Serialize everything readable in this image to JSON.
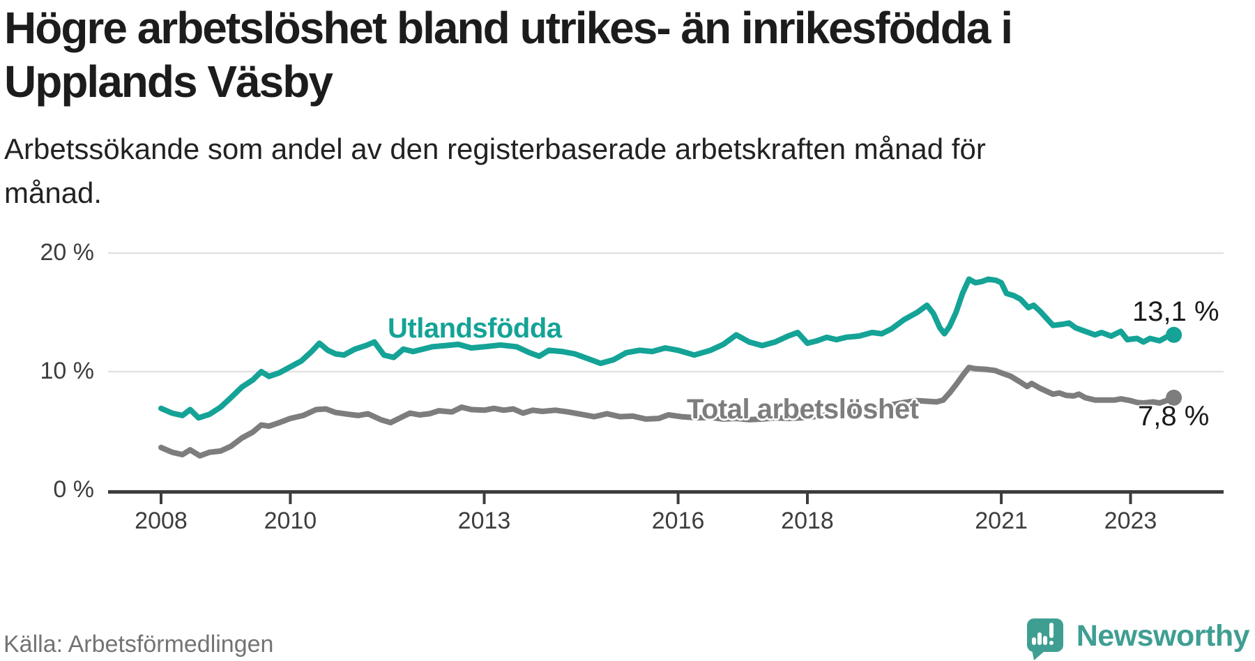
{
  "title": {
    "lines": [
      "Högre arbetslöshet bland utrikes- än inrikesfödda i",
      "Upplands Väsby"
    ]
  },
  "subtitle": {
    "lines": [
      "Arbetssökande som andel av den registerbaserade arbetskraften månad för",
      "månad."
    ]
  },
  "source_note": "Källa: Arbetsförmedlingen",
  "logo": {
    "text": "Newsworthy",
    "icon": "newsworthy-speech-bubble-bar-chart-icon"
  },
  "colors": {
    "teal_line": "#14a396",
    "gray_line": "#7d7d7d",
    "axis": "#3d3d3d",
    "grid": "#e2e2e2",
    "annotation": "#1a1a1a",
    "logo_teal": "#3f9e92",
    "background": "#ffffff"
  },
  "chart_data": {
    "type": "line",
    "title": "Högre arbetslöshet bland utrikes- än inrikesfödda i Upplands Väsby",
    "xlabel": "",
    "ylabel": "Arbetssökande som andel av den registerbaserade arbetskraften",
    "unit": "%",
    "grid": "horizontal",
    "legend": "inline-labels",
    "xlim": [
      2007.2,
      2024.4
    ],
    "ylim": [
      0,
      20
    ],
    "y_ticks": [
      {
        "label": "20 %",
        "value": 20
      },
      {
        "label": "10 %",
        "value": 10
      },
      {
        "label": "0 %",
        "value": 0
      }
    ],
    "x_ticks": [
      {
        "label": "2008",
        "year": 2008
      },
      {
        "label": "2010",
        "year": 2010
      },
      {
        "label": "2013",
        "year": 2013
      },
      {
        "label": "2016",
        "year": 2016
      },
      {
        "label": "2018",
        "year": 2018
      },
      {
        "label": "2021",
        "year": 2021
      },
      {
        "label": "2023",
        "year": 2023
      }
    ],
    "series": [
      {
        "name": "Utlandsfödda",
        "color_key": "teal_line",
        "end_value": 13.1,
        "end_label": "13,1 %",
        "points": [
          [
            2008.0,
            6.9
          ],
          [
            2008.17,
            6.5
          ],
          [
            2008.33,
            6.3
          ],
          [
            2008.45,
            6.8
          ],
          [
            2008.58,
            6.1
          ],
          [
            2008.75,
            6.4
          ],
          [
            2008.92,
            7.0
          ],
          [
            2009.08,
            7.8
          ],
          [
            2009.25,
            8.7
          ],
          [
            2009.42,
            9.3
          ],
          [
            2009.55,
            10.0
          ],
          [
            2009.67,
            9.6
          ],
          [
            2009.83,
            9.9
          ],
          [
            2010.0,
            10.4
          ],
          [
            2010.17,
            10.9
          ],
          [
            2010.33,
            11.7
          ],
          [
            2010.45,
            12.4
          ],
          [
            2010.58,
            11.8
          ],
          [
            2010.7,
            11.5
          ],
          [
            2010.83,
            11.4
          ],
          [
            2011.0,
            11.9
          ],
          [
            2011.17,
            12.2
          ],
          [
            2011.3,
            12.5
          ],
          [
            2011.45,
            11.4
          ],
          [
            2011.6,
            11.2
          ],
          [
            2011.75,
            11.9
          ],
          [
            2011.9,
            11.7
          ],
          [
            2012.05,
            11.9
          ],
          [
            2012.2,
            12.1
          ],
          [
            2012.4,
            12.2
          ],
          [
            2012.6,
            12.3
          ],
          [
            2012.8,
            12.0
          ],
          [
            2013.0,
            12.1
          ],
          [
            2013.25,
            12.25
          ],
          [
            2013.5,
            12.1
          ],
          [
            2013.7,
            11.6
          ],
          [
            2013.85,
            11.3
          ],
          [
            2014.0,
            11.8
          ],
          [
            2014.2,
            11.7
          ],
          [
            2014.4,
            11.5
          ],
          [
            2014.6,
            11.1
          ],
          [
            2014.8,
            10.7
          ],
          [
            2015.0,
            11.0
          ],
          [
            2015.2,
            11.6
          ],
          [
            2015.4,
            11.8
          ],
          [
            2015.6,
            11.7
          ],
          [
            2015.8,
            12.0
          ],
          [
            2016.0,
            11.8
          ],
          [
            2016.25,
            11.4
          ],
          [
            2016.5,
            11.8
          ],
          [
            2016.7,
            12.3
          ],
          [
            2016.9,
            13.1
          ],
          [
            2017.1,
            12.5
          ],
          [
            2017.3,
            12.2
          ],
          [
            2017.5,
            12.5
          ],
          [
            2017.7,
            13.0
          ],
          [
            2017.85,
            13.3
          ],
          [
            2018.0,
            12.4
          ],
          [
            2018.15,
            12.6
          ],
          [
            2018.3,
            12.9
          ],
          [
            2018.45,
            12.7
          ],
          [
            2018.6,
            12.9
          ],
          [
            2018.8,
            13.0
          ],
          [
            2019.0,
            13.3
          ],
          [
            2019.15,
            13.2
          ],
          [
            2019.3,
            13.6
          ],
          [
            2019.5,
            14.4
          ],
          [
            2019.7,
            15.0
          ],
          [
            2019.85,
            15.6
          ],
          [
            2019.95,
            14.9
          ],
          [
            2020.05,
            13.7
          ],
          [
            2020.12,
            13.2
          ],
          [
            2020.2,
            13.8
          ],
          [
            2020.3,
            15.0
          ],
          [
            2020.4,
            16.6
          ],
          [
            2020.5,
            17.8
          ],
          [
            2020.6,
            17.5
          ],
          [
            2020.7,
            17.6
          ],
          [
            2020.8,
            17.8
          ],
          [
            2020.92,
            17.7
          ],
          [
            2021.0,
            17.5
          ],
          [
            2021.08,
            16.6
          ],
          [
            2021.2,
            16.4
          ],
          [
            2021.3,
            16.1
          ],
          [
            2021.42,
            15.4
          ],
          [
            2021.5,
            15.6
          ],
          [
            2021.6,
            15.1
          ],
          [
            2021.7,
            14.5
          ],
          [
            2021.8,
            13.9
          ],
          [
            2021.95,
            14.0
          ],
          [
            2022.05,
            14.1
          ],
          [
            2022.15,
            13.7
          ],
          [
            2022.3,
            13.4
          ],
          [
            2022.45,
            13.1
          ],
          [
            2022.55,
            13.3
          ],
          [
            2022.7,
            13.0
          ],
          [
            2022.85,
            13.4
          ],
          [
            2022.95,
            12.7
          ],
          [
            2023.1,
            12.8
          ],
          [
            2023.2,
            12.5
          ],
          [
            2023.3,
            12.8
          ],
          [
            2023.45,
            12.6
          ],
          [
            2023.58,
            13.0
          ],
          [
            2023.67,
            13.1
          ]
        ]
      },
      {
        "name": "Total arbetslöshet",
        "color_key": "gray_line",
        "end_value": 7.8,
        "end_label": "7,8 %",
        "points": [
          [
            2008.0,
            3.6
          ],
          [
            2008.17,
            3.2
          ],
          [
            2008.33,
            3.0
          ],
          [
            2008.45,
            3.4
          ],
          [
            2008.6,
            2.9
          ],
          [
            2008.75,
            3.2
          ],
          [
            2008.92,
            3.3
          ],
          [
            2009.08,
            3.7
          ],
          [
            2009.25,
            4.4
          ],
          [
            2009.42,
            4.9
          ],
          [
            2009.55,
            5.5
          ],
          [
            2009.67,
            5.4
          ],
          [
            2009.83,
            5.7
          ],
          [
            2010.0,
            6.05
          ],
          [
            2010.2,
            6.3
          ],
          [
            2010.4,
            6.8
          ],
          [
            2010.55,
            6.85
          ],
          [
            2010.7,
            6.55
          ],
          [
            2010.9,
            6.4
          ],
          [
            2011.05,
            6.3
          ],
          [
            2011.2,
            6.45
          ],
          [
            2011.4,
            5.95
          ],
          [
            2011.55,
            5.7
          ],
          [
            2011.7,
            6.1
          ],
          [
            2011.85,
            6.5
          ],
          [
            2012.0,
            6.35
          ],
          [
            2012.15,
            6.45
          ],
          [
            2012.3,
            6.7
          ],
          [
            2012.5,
            6.6
          ],
          [
            2012.65,
            7.0
          ],
          [
            2012.8,
            6.8
          ],
          [
            2013.0,
            6.75
          ],
          [
            2013.15,
            6.9
          ],
          [
            2013.3,
            6.75
          ],
          [
            2013.45,
            6.85
          ],
          [
            2013.6,
            6.5
          ],
          [
            2013.75,
            6.75
          ],
          [
            2013.9,
            6.65
          ],
          [
            2014.1,
            6.75
          ],
          [
            2014.3,
            6.6
          ],
          [
            2014.5,
            6.4
          ],
          [
            2014.7,
            6.2
          ],
          [
            2014.9,
            6.45
          ],
          [
            2015.1,
            6.2
          ],
          [
            2015.3,
            6.25
          ],
          [
            2015.5,
            6.0
          ],
          [
            2015.7,
            6.05
          ],
          [
            2015.85,
            6.35
          ],
          [
            2016.05,
            6.2
          ],
          [
            2016.3,
            6.1
          ],
          [
            2016.5,
            6.15
          ],
          [
            2016.7,
            6.0
          ],
          [
            2016.9,
            6.05
          ],
          [
            2017.1,
            5.95
          ],
          [
            2017.3,
            6.0
          ],
          [
            2017.5,
            6.1
          ],
          [
            2017.7,
            6.05
          ],
          [
            2017.9,
            6.1
          ],
          [
            2018.1,
            6.2
          ],
          [
            2018.3,
            6.35
          ],
          [
            2018.5,
            6.5
          ],
          [
            2018.7,
            6.6
          ],
          [
            2018.9,
            6.8
          ],
          [
            2019.1,
            7.0
          ],
          [
            2019.3,
            7.2
          ],
          [
            2019.5,
            7.4
          ],
          [
            2019.7,
            7.55
          ],
          [
            2019.85,
            7.5
          ],
          [
            2020.0,
            7.45
          ],
          [
            2020.1,
            7.6
          ],
          [
            2020.2,
            8.2
          ],
          [
            2020.3,
            8.9
          ],
          [
            2020.42,
            9.8
          ],
          [
            2020.5,
            10.35
          ],
          [
            2020.6,
            10.25
          ],
          [
            2020.75,
            10.2
          ],
          [
            2020.9,
            10.1
          ],
          [
            2021.0,
            9.9
          ],
          [
            2021.15,
            9.6
          ],
          [
            2021.3,
            9.1
          ],
          [
            2021.4,
            8.75
          ],
          [
            2021.47,
            9.0
          ],
          [
            2021.6,
            8.6
          ],
          [
            2021.8,
            8.1
          ],
          [
            2021.9,
            8.2
          ],
          [
            2022.0,
            8.0
          ],
          [
            2022.12,
            7.95
          ],
          [
            2022.2,
            8.1
          ],
          [
            2022.3,
            7.8
          ],
          [
            2022.45,
            7.6
          ],
          [
            2022.6,
            7.6
          ],
          [
            2022.75,
            7.6
          ],
          [
            2022.85,
            7.7
          ],
          [
            2023.0,
            7.55
          ],
          [
            2023.1,
            7.4
          ],
          [
            2023.2,
            7.35
          ],
          [
            2023.35,
            7.45
          ],
          [
            2023.45,
            7.35
          ],
          [
            2023.58,
            7.6
          ],
          [
            2023.67,
            7.8
          ]
        ]
      }
    ]
  }
}
